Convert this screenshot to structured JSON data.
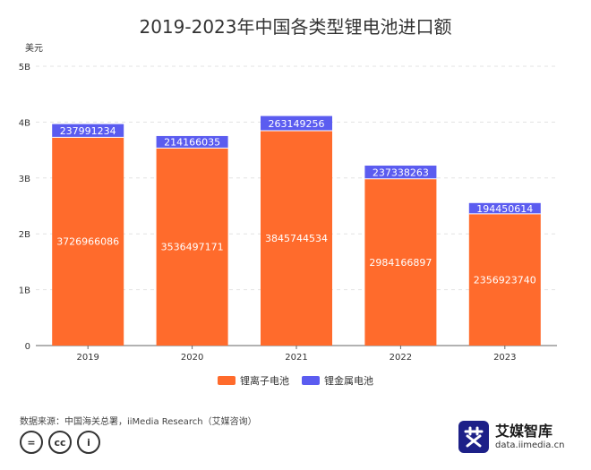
{
  "chart_data": {
    "type": "bar",
    "stacked": true,
    "title": "2019-2023年中国各类型锂电池进口额",
    "ylabel": "美元",
    "xlabel": "",
    "categories": [
      "2019",
      "2020",
      "2021",
      "2022",
      "2023"
    ],
    "ylim": [
      0,
      5000000000
    ],
    "yticks": [
      0,
      1000000000,
      2000000000,
      3000000000,
      4000000000,
      5000000000
    ],
    "ytick_labels": [
      "0",
      "1B",
      "2B",
      "3B",
      "4B",
      "5B"
    ],
    "grid": true,
    "legend_position": "bottom",
    "series": [
      {
        "name": "锂离子电池",
        "color": "#FF6B2C",
        "values": [
          3726966086,
          3536497171,
          3845744534,
          2984166897,
          2356923740
        ]
      },
      {
        "name": "锂金属电池",
        "color": "#5B5CF0",
        "values": [
          237991234,
          214166035,
          263149256,
          237338263,
          194450614
        ]
      }
    ]
  },
  "source_note": "数据来源：中国海关总署，iiMedia Research（艾媒咨询）",
  "cc_icons": [
    "equals-icon",
    "cc-icon",
    "person-icon"
  ],
  "cc_text": {
    "equals": "=",
    "cc": "cc",
    "person": "i"
  },
  "brand": {
    "name": "艾媒智库",
    "url": "data.iimedia.cn",
    "logo_char": "艾"
  }
}
